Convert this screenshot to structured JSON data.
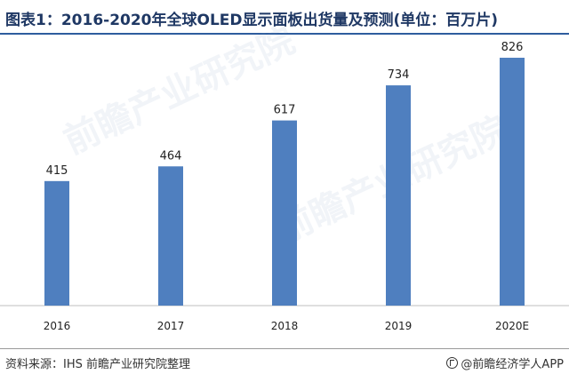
{
  "title": "图表1：2016-2020年全球OLED显示面板出货量及预测(单位：百万片)",
  "footer": {
    "source": "资料来源：IHS 前瞻产业研究院整理",
    "brand": "@前瞻经济学人APP"
  },
  "watermark": "前瞻产业研究院",
  "chart_data": {
    "type": "bar",
    "title": "图表1：2016-2020年全球OLED显示面板出货量及预测(单位：百万片)",
    "categories": [
      "2016",
      "2017",
      "2018",
      "2019",
      "2020E"
    ],
    "values": [
      415,
      464,
      617,
      734,
      826
    ],
    "data_labels": [
      "415",
      "464",
      "617",
      "734",
      "826"
    ],
    "xlabel": "",
    "ylabel": "",
    "ylim": [
      0,
      900
    ],
    "grid": false,
    "legend": "none",
    "bar_color": "#4f7fbf"
  }
}
